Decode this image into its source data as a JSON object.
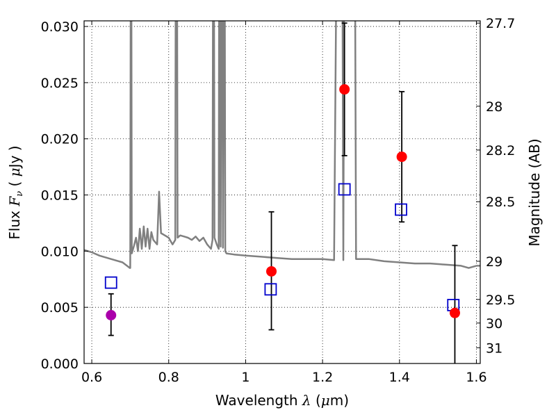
{
  "chart_data": {
    "type": "scatter",
    "xlabel": {
      "prefix": "Wavelength  ",
      "symbol": "λ",
      "suffix": " (",
      "mu": "μ",
      "unit": "m)"
    },
    "ylabel": {
      "prefix": "Flux  ",
      "symbol": "F",
      "sub": "ν",
      "suffix": "  ( ",
      "mu": "μ",
      "unit": "Jy )"
    },
    "y2label": "Magnitude (AB)",
    "xlim": [
      0.58,
      1.61
    ],
    "ylim": [
      0.0,
      0.0305
    ],
    "grid": true,
    "x_ticks": [
      {
        "v": 0.6,
        "label": "0.6"
      },
      {
        "v": 0.8,
        "label": "0.8"
      },
      {
        "v": 1.0,
        "label": "1"
      },
      {
        "v": 1.2,
        "label": "1.2"
      },
      {
        "v": 1.4,
        "label": "1.4"
      },
      {
        "v": 1.6,
        "label": "1.6"
      }
    ],
    "y_ticks": [
      {
        "v": 0.0,
        "label": "0.000"
      },
      {
        "v": 0.005,
        "label": "0.005"
      },
      {
        "v": 0.01,
        "label": "0.010"
      },
      {
        "v": 0.015,
        "label": "0.015"
      },
      {
        "v": 0.02,
        "label": "0.020"
      },
      {
        "v": 0.025,
        "label": "0.025"
      },
      {
        "v": 0.03,
        "label": "0.030"
      }
    ],
    "y2_ticks": [
      {
        "label": "27.7",
        "flux": 0.0303
      },
      {
        "label": "28",
        "flux": 0.0229
      },
      {
        "label": "28.2",
        "flux": 0.019
      },
      {
        "label": "28.5",
        "flux": 0.0144
      },
      {
        "label": "29",
        "flux": 0.0091
      },
      {
        "label": "29.5",
        "flux": 0.0057
      },
      {
        "label": "30",
        "flux": 0.0036
      },
      {
        "label": "31",
        "flux": 0.0014
      }
    ],
    "series": [
      {
        "kind": "spectrum",
        "color": "#808080",
        "points": [
          [
            0.58,
            0.0101
          ],
          [
            0.6,
            0.0099
          ],
          [
            0.62,
            0.0096
          ],
          [
            0.64,
            0.0094
          ],
          [
            0.66,
            0.0092
          ],
          [
            0.68,
            0.009
          ],
          [
            0.699,
            0.0085
          ],
          [
            0.7,
            0.0085
          ],
          [
            0.701,
            0.031
          ],
          [
            0.703,
            0.031
          ],
          [
            0.704,
            0.0098
          ],
          [
            0.71,
            0.0105
          ],
          [
            0.715,
            0.0112
          ],
          [
            0.72,
            0.01
          ],
          [
            0.725,
            0.012
          ],
          [
            0.73,
            0.0102
          ],
          [
            0.735,
            0.0122
          ],
          [
            0.74,
            0.0104
          ],
          [
            0.745,
            0.012
          ],
          [
            0.75,
            0.0102
          ],
          [
            0.755,
            0.0117
          ],
          [
            0.76,
            0.011
          ],
          [
            0.77,
            0.0106
          ],
          [
            0.775,
            0.0153
          ],
          [
            0.78,
            0.0116
          ],
          [
            0.79,
            0.0114
          ],
          [
            0.8,
            0.0112
          ],
          [
            0.81,
            0.0106
          ],
          [
            0.817,
            0.011
          ],
          [
            0.818,
            0.031
          ],
          [
            0.822,
            0.031
          ],
          [
            0.823,
            0.0112
          ],
          [
            0.83,
            0.0114
          ],
          [
            0.84,
            0.0113
          ],
          [
            0.85,
            0.0112
          ],
          [
            0.86,
            0.011
          ],
          [
            0.87,
            0.0113
          ],
          [
            0.88,
            0.0109
          ],
          [
            0.89,
            0.0112
          ],
          [
            0.9,
            0.0106
          ],
          [
            0.91,
            0.0102
          ],
          [
            0.914,
            0.011
          ],
          [
            0.915,
            0.031
          ],
          [
            0.918,
            0.031
          ],
          [
            0.919,
            0.0112
          ],
          [
            0.925,
            0.0106
          ],
          [
            0.93,
            0.0102
          ],
          [
            0.931,
            0.031
          ],
          [
            0.934,
            0.031
          ],
          [
            0.935,
            0.0104
          ],
          [
            0.937,
            0.031
          ],
          [
            0.94,
            0.031
          ],
          [
            0.941,
            0.0103
          ],
          [
            0.943,
            0.031
          ],
          [
            0.946,
            0.031
          ],
          [
            0.947,
            0.01
          ],
          [
            0.95,
            0.0098
          ],
          [
            0.97,
            0.0097
          ],
          [
            1.0,
            0.0096
          ],
          [
            1.04,
            0.0095
          ],
          [
            1.08,
            0.0094
          ],
          [
            1.12,
            0.0093
          ],
          [
            1.16,
            0.0093
          ],
          [
            1.2,
            0.0093
          ],
          [
            1.23,
            0.0092
          ],
          [
            1.235,
            0.031
          ],
          [
            1.252,
            0.031
          ],
          [
            1.254,
            0.0092
          ],
          [
            1.256,
            0.031
          ],
          [
            1.285,
            0.031
          ],
          [
            1.287,
            0.0093
          ],
          [
            1.32,
            0.0093
          ],
          [
            1.36,
            0.0091
          ],
          [
            1.4,
            0.009
          ],
          [
            1.44,
            0.0089
          ],
          [
            1.48,
            0.0089
          ],
          [
            1.52,
            0.0088
          ],
          [
            1.56,
            0.0087
          ],
          [
            1.58,
            0.0085
          ],
          [
            1.6,
            0.0087
          ],
          [
            1.61,
            0.0087
          ]
        ]
      },
      {
        "kind": "model_squares",
        "color": "#0000cc",
        "points": [
          [
            0.65,
            0.0072
          ],
          [
            1.065,
            0.0066
          ],
          [
            1.257,
            0.0155
          ],
          [
            1.404,
            0.0137
          ],
          [
            1.54,
            0.0052
          ]
        ]
      },
      {
        "kind": "observed",
        "color": "#ff0000",
        "points": [
          {
            "x": 0.65,
            "y": 0.0043,
            "lo": 0.0025,
            "hi": 0.0062,
            "color": "#aa00aa"
          },
          {
            "x": 1.067,
            "y": 0.0082,
            "lo": 0.003,
            "hi": 0.0135
          },
          {
            "x": 1.257,
            "y": 0.0244,
            "lo": 0.0185,
            "hi": 0.0303
          },
          {
            "x": 1.406,
            "y": 0.0184,
            "lo": 0.0126,
            "hi": 0.0242
          },
          {
            "x": 1.544,
            "y": 0.0045,
            "lo": 0.0,
            "hi": 0.0105
          }
        ]
      }
    ]
  }
}
